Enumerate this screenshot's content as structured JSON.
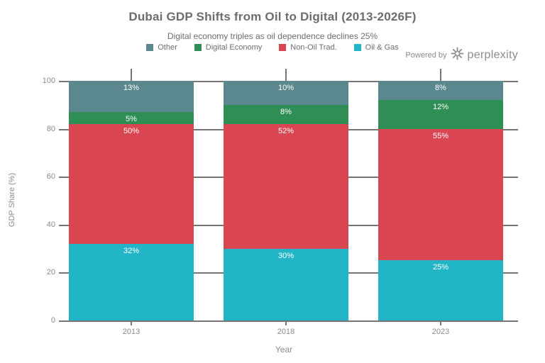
{
  "header": {
    "title": "Dubai GDP Shifts from Oil to Digital (2013-2026F)",
    "subtitle": "Digital economy triples as oil dependence declines 25%"
  },
  "powered_by": {
    "prefix": "Powered by",
    "brand": "perplexity",
    "logo": "perplexity-asterisk-icon"
  },
  "colors": {
    "other": "#5b878f",
    "digital_economy": "#2e8e55",
    "non_oil_trad": "#da4552",
    "oil_gas": "#22b4c7",
    "grid": "#767676",
    "tick_text": "#8c8c8c",
    "title_text": "#6d6d6d",
    "background": "#ffffff"
  },
  "chart_data": {
    "type": "bar",
    "stacked": true,
    "title": "Dubai GDP Shifts from Oil to Digital (2013-2026F)",
    "subtitle": "Digital economy triples as oil dependence declines 25%",
    "categories": [
      "2013",
      "2018",
      "2023"
    ],
    "series": [
      {
        "name": "Oil & Gas",
        "color": "#22b4c7",
        "values": [
          32,
          30,
          25
        ],
        "labels": [
          "32%",
          "30%",
          "25%"
        ]
      },
      {
        "name": "Non-Oil Trad.",
        "color": "#da4552",
        "values": [
          50,
          52,
          55
        ],
        "labels": [
          "50%",
          "52%",
          "55%"
        ]
      },
      {
        "name": "Digital Economy",
        "color": "#2e8e55",
        "values": [
          5,
          8,
          12
        ],
        "labels": [
          "5%",
          "8%",
          "12%"
        ]
      },
      {
        "name": "Other",
        "color": "#5b878f",
        "values": [
          13,
          10,
          8
        ],
        "labels": [
          "13%",
          "10%",
          "8%"
        ]
      }
    ],
    "legend_order": [
      "Other",
      "Digital Economy",
      "Non-Oil Trad.",
      "Oil & Gas"
    ],
    "legend_position": "top-center",
    "xlabel": "Year",
    "ylabel": "GDP Share (%)",
    "ylim": [
      0,
      100
    ],
    "yticks": [
      0,
      20,
      40,
      60,
      80,
      100
    ],
    "grid": true,
    "bar_label_position": "inside-top",
    "bar_label_color": "#ffffff"
  }
}
